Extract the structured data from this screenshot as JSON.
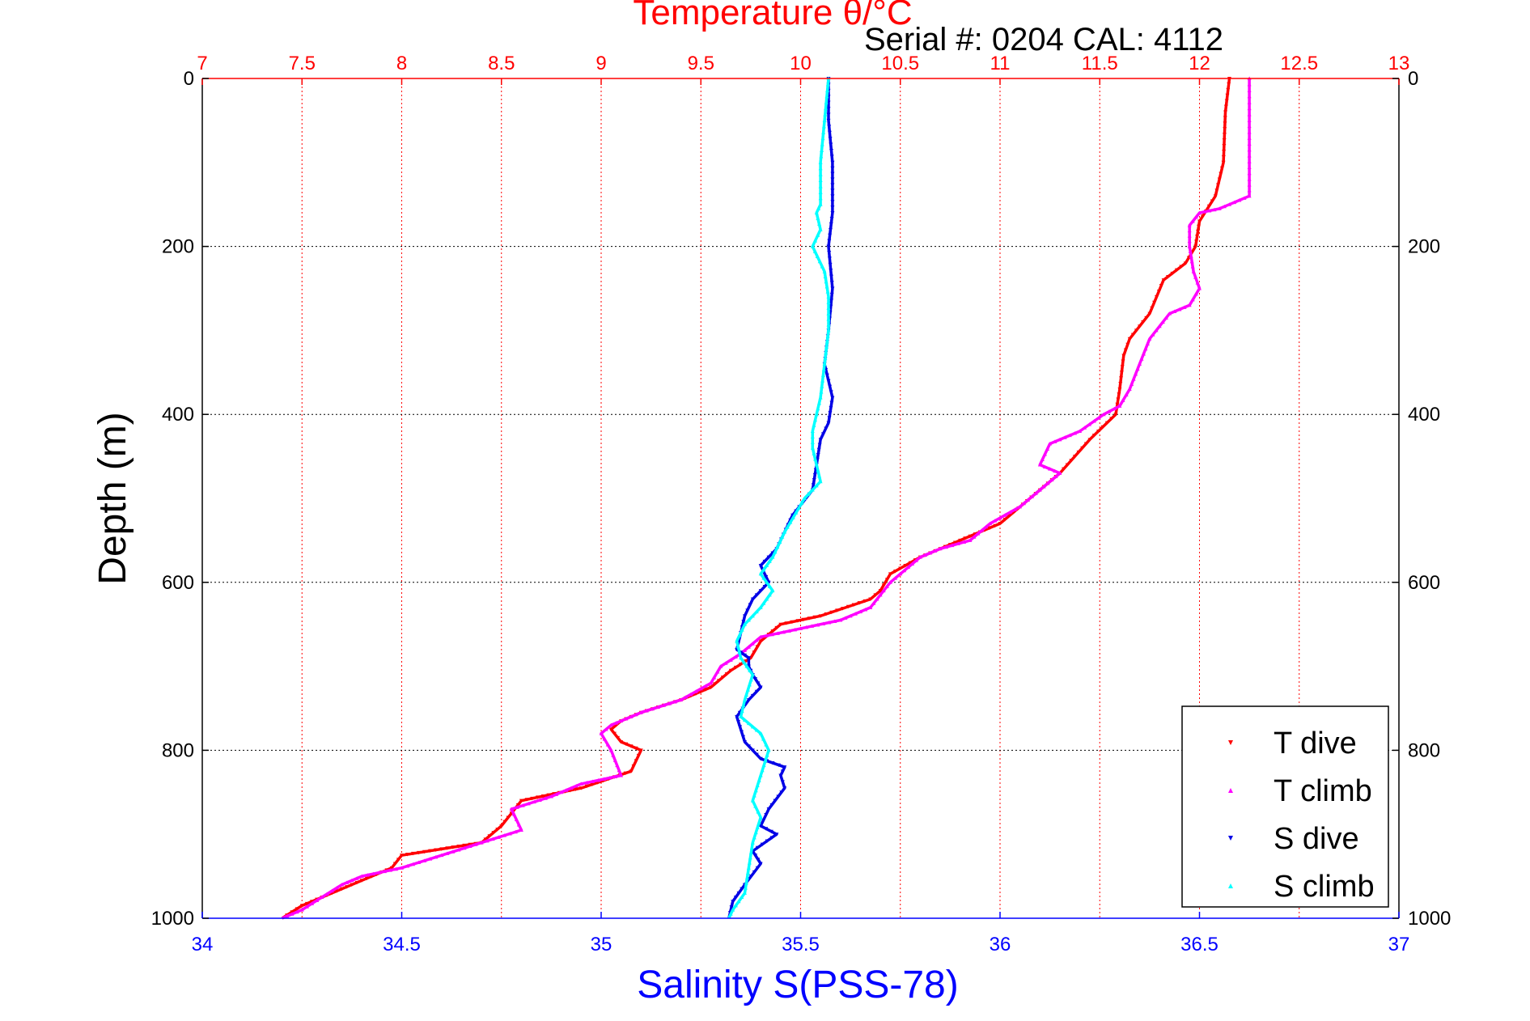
{
  "chart_data": {
    "type": "scatter",
    "title": "Temperature θ/°C",
    "subtitle": "Serial #: 0204  CAL: 4112",
    "xlabel": "Salinity S(PSS-78)",
    "ylabel": "Depth (m)",
    "x_top": {
      "label": "Temperature θ/°C",
      "lim": [
        7,
        13
      ],
      "ticks": [
        "7",
        "7.5",
        "8",
        "8.5",
        "9",
        "9.5",
        "10",
        "10.5",
        "11",
        "11.5",
        "12",
        "12.5",
        "13"
      ]
    },
    "x_bottom": {
      "label": "Salinity S(PSS-78)",
      "lim": [
        34,
        37
      ],
      "ticks": [
        "34",
        "34.5",
        "35",
        "35.5",
        "36",
        "36.5",
        "37"
      ]
    },
    "y": {
      "label": "Depth (m)",
      "lim": [
        0,
        1000
      ],
      "reversed": true,
      "ticks": [
        "0",
        "200",
        "400",
        "600",
        "800",
        "1000"
      ]
    },
    "grid": true,
    "legend_position": "bottom-right",
    "series": [
      {
        "name": "T dive",
        "axis": "temperature",
        "color": "#ff0000",
        "marker": "triangle-down",
        "points": [
          [
            12.15,
            0
          ],
          [
            12.13,
            40
          ],
          [
            12.12,
            100
          ],
          [
            12.08,
            140
          ],
          [
            12.0,
            170
          ],
          [
            11.98,
            200
          ],
          [
            11.93,
            220
          ],
          [
            11.82,
            240
          ],
          [
            11.75,
            280
          ],
          [
            11.65,
            310
          ],
          [
            11.62,
            330
          ],
          [
            11.6,
            370
          ],
          [
            11.58,
            400
          ],
          [
            11.45,
            430
          ],
          [
            11.3,
            470
          ],
          [
            11.2,
            490
          ],
          [
            11.05,
            520
          ],
          [
            11.0,
            530
          ],
          [
            10.8,
            550
          ],
          [
            10.6,
            570
          ],
          [
            10.45,
            590
          ],
          [
            10.4,
            610
          ],
          [
            10.35,
            620
          ],
          [
            10.1,
            640
          ],
          [
            9.9,
            650
          ],
          [
            9.8,
            670
          ],
          [
            9.75,
            690
          ],
          [
            9.65,
            705
          ],
          [
            9.55,
            725
          ],
          [
            9.4,
            740
          ],
          [
            9.2,
            755
          ],
          [
            9.1,
            765
          ],
          [
            9.05,
            775
          ],
          [
            9.1,
            790
          ],
          [
            9.2,
            800
          ],
          [
            9.15,
            825
          ],
          [
            8.9,
            845
          ],
          [
            8.6,
            860
          ],
          [
            8.55,
            875
          ],
          [
            8.5,
            890
          ],
          [
            8.4,
            910
          ],
          [
            8.0,
            925
          ],
          [
            7.95,
            940
          ],
          [
            7.8,
            955
          ],
          [
            7.7,
            965
          ],
          [
            7.5,
            985
          ],
          [
            7.4,
            1000
          ]
        ]
      },
      {
        "name": "T climb",
        "axis": "temperature",
        "color": "#ff00ff",
        "marker": "triangle-up",
        "points": [
          [
            12.25,
            0
          ],
          [
            12.25,
            50
          ],
          [
            12.25,
            120
          ],
          [
            12.25,
            140
          ],
          [
            12.15,
            150
          ],
          [
            12.1,
            155
          ],
          [
            12.0,
            160
          ],
          [
            11.95,
            175
          ],
          [
            11.95,
            200
          ],
          [
            11.97,
            230
          ],
          [
            12.0,
            250
          ],
          [
            11.95,
            270
          ],
          [
            11.85,
            280
          ],
          [
            11.75,
            310
          ],
          [
            11.7,
            340
          ],
          [
            11.65,
            370
          ],
          [
            11.6,
            390
          ],
          [
            11.52,
            400
          ],
          [
            11.4,
            420
          ],
          [
            11.25,
            435
          ],
          [
            11.2,
            460
          ],
          [
            11.3,
            470
          ],
          [
            11.2,
            490
          ],
          [
            11.1,
            510
          ],
          [
            10.95,
            530
          ],
          [
            10.85,
            550
          ],
          [
            10.7,
            560
          ],
          [
            10.6,
            570
          ],
          [
            10.5,
            590
          ],
          [
            10.45,
            600
          ],
          [
            10.35,
            630
          ],
          [
            10.2,
            645
          ],
          [
            10.0,
            655
          ],
          [
            9.8,
            665
          ],
          [
            9.7,
            685
          ],
          [
            9.6,
            700
          ],
          [
            9.55,
            720
          ],
          [
            9.4,
            740
          ],
          [
            9.2,
            755
          ],
          [
            9.05,
            770
          ],
          [
            9.0,
            780
          ],
          [
            9.05,
            800
          ],
          [
            9.1,
            830
          ],
          [
            8.9,
            840
          ],
          [
            8.75,
            855
          ],
          [
            8.55,
            870
          ],
          [
            8.6,
            895
          ],
          [
            8.4,
            910
          ],
          [
            8.2,
            925
          ],
          [
            8.0,
            940
          ],
          [
            7.8,
            950
          ],
          [
            7.7,
            960
          ],
          [
            7.6,
            975
          ],
          [
            7.5,
            990
          ],
          [
            7.4,
            1000
          ]
        ]
      },
      {
        "name": "S dive",
        "axis": "salinity",
        "color": "#0000e6",
        "marker": "triangle-down",
        "points": [
          [
            35.57,
            0
          ],
          [
            35.57,
            50
          ],
          [
            35.58,
            100
          ],
          [
            35.58,
            160
          ],
          [
            35.57,
            200
          ],
          [
            35.58,
            250
          ],
          [
            35.57,
            300
          ],
          [
            35.56,
            340
          ],
          [
            35.58,
            380
          ],
          [
            35.57,
            410
          ],
          [
            35.55,
            430
          ],
          [
            35.54,
            460
          ],
          [
            35.53,
            490
          ],
          [
            35.48,
            520
          ],
          [
            35.44,
            560
          ],
          [
            35.4,
            580
          ],
          [
            35.42,
            600
          ],
          [
            35.38,
            620
          ],
          [
            35.36,
            640
          ],
          [
            35.35,
            660
          ],
          [
            35.34,
            680
          ],
          [
            35.37,
            690
          ],
          [
            35.37,
            700
          ],
          [
            35.38,
            710
          ],
          [
            35.4,
            725
          ],
          [
            35.37,
            740
          ],
          [
            35.34,
            760
          ],
          [
            35.36,
            790
          ],
          [
            35.4,
            810
          ],
          [
            35.46,
            820
          ],
          [
            35.45,
            830
          ],
          [
            35.46,
            845
          ],
          [
            35.42,
            870
          ],
          [
            35.4,
            890
          ],
          [
            35.44,
            900
          ],
          [
            35.38,
            920
          ],
          [
            35.4,
            935
          ],
          [
            35.36,
            960
          ],
          [
            35.33,
            980
          ],
          [
            35.32,
            1000
          ]
        ]
      },
      {
        "name": "S climb",
        "axis": "salinity",
        "color": "#00ffff",
        "marker": "triangle-up",
        "points": [
          [
            35.57,
            0
          ],
          [
            35.56,
            50
          ],
          [
            35.55,
            100
          ],
          [
            35.55,
            150
          ],
          [
            35.54,
            160
          ],
          [
            35.55,
            180
          ],
          [
            35.53,
            200
          ],
          [
            35.56,
            230
          ],
          [
            35.57,
            260
          ],
          [
            35.57,
            300
          ],
          [
            35.56,
            340
          ],
          [
            35.55,
            380
          ],
          [
            35.53,
            420
          ],
          [
            35.53,
            440
          ],
          [
            35.54,
            460
          ],
          [
            35.55,
            480
          ],
          [
            35.51,
            500
          ],
          [
            35.46,
            540
          ],
          [
            35.43,
            570
          ],
          [
            35.4,
            590
          ],
          [
            35.43,
            610
          ],
          [
            35.4,
            630
          ],
          [
            35.36,
            650
          ],
          [
            35.34,
            670
          ],
          [
            35.35,
            690
          ],
          [
            35.38,
            710
          ],
          [
            35.36,
            740
          ],
          [
            35.35,
            760
          ],
          [
            35.4,
            780
          ],
          [
            35.42,
            800
          ],
          [
            35.4,
            830
          ],
          [
            35.38,
            860
          ],
          [
            35.4,
            880
          ],
          [
            35.38,
            910
          ],
          [
            35.37,
            940
          ],
          [
            35.36,
            970
          ],
          [
            35.33,
            990
          ],
          [
            35.32,
            1000
          ]
        ]
      }
    ]
  }
}
